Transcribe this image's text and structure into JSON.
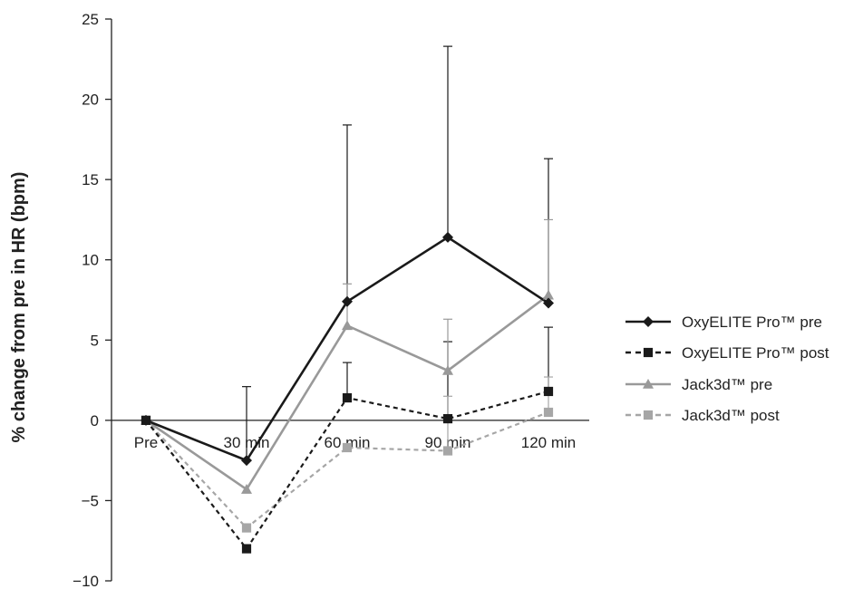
{
  "chart_data": {
    "type": "line",
    "title": "",
    "xlabel": "",
    "ylabel": "% change from pre in HR (bpm)",
    "categories": [
      "Pre",
      "30 min",
      "60 min",
      "90 min",
      "120 min"
    ],
    "ylim": [
      -10,
      25
    ],
    "yticks": [
      25,
      20,
      15,
      10,
      5,
      0,
      -5,
      -10
    ],
    "ytick_labels": [
      "25",
      "20",
      "15",
      "10",
      "5",
      "0",
      "−5",
      "−10"
    ],
    "grid": false,
    "legend_position": "right",
    "series": [
      {
        "name": "OxyELITE Pro™ pre",
        "values": [
          0,
          -2.5,
          7.4,
          11.4,
          7.3
        ],
        "error_upper": [
          null,
          2.1,
          18.4,
          23.3,
          16.3
        ],
        "color": "#1a1a1a",
        "line": "solid",
        "marker": "diamond"
      },
      {
        "name": "OxyELITE Pro™ post",
        "values": [
          0,
          -8.0,
          1.4,
          0.1,
          1.8
        ],
        "error_upper": [
          null,
          null,
          3.6,
          4.9,
          5.8
        ],
        "color": "#1a1a1a",
        "line": "dashed",
        "marker": "square"
      },
      {
        "name": "Jack3d™ pre",
        "values": [
          0,
          -4.3,
          5.9,
          3.1,
          7.8
        ],
        "error_upper": [
          null,
          null,
          8.5,
          6.3,
          12.5
        ],
        "color": "#999999",
        "line": "solid",
        "marker": "triangle"
      },
      {
        "name": "Jack3d™ post",
        "values": [
          0,
          -6.7,
          -1.7,
          -1.9,
          0.5
        ],
        "error_upper": [
          null,
          null,
          null,
          1.5,
          2.7
        ],
        "color": "#a6a6a6",
        "line": "dashed",
        "marker": "square"
      }
    ]
  }
}
